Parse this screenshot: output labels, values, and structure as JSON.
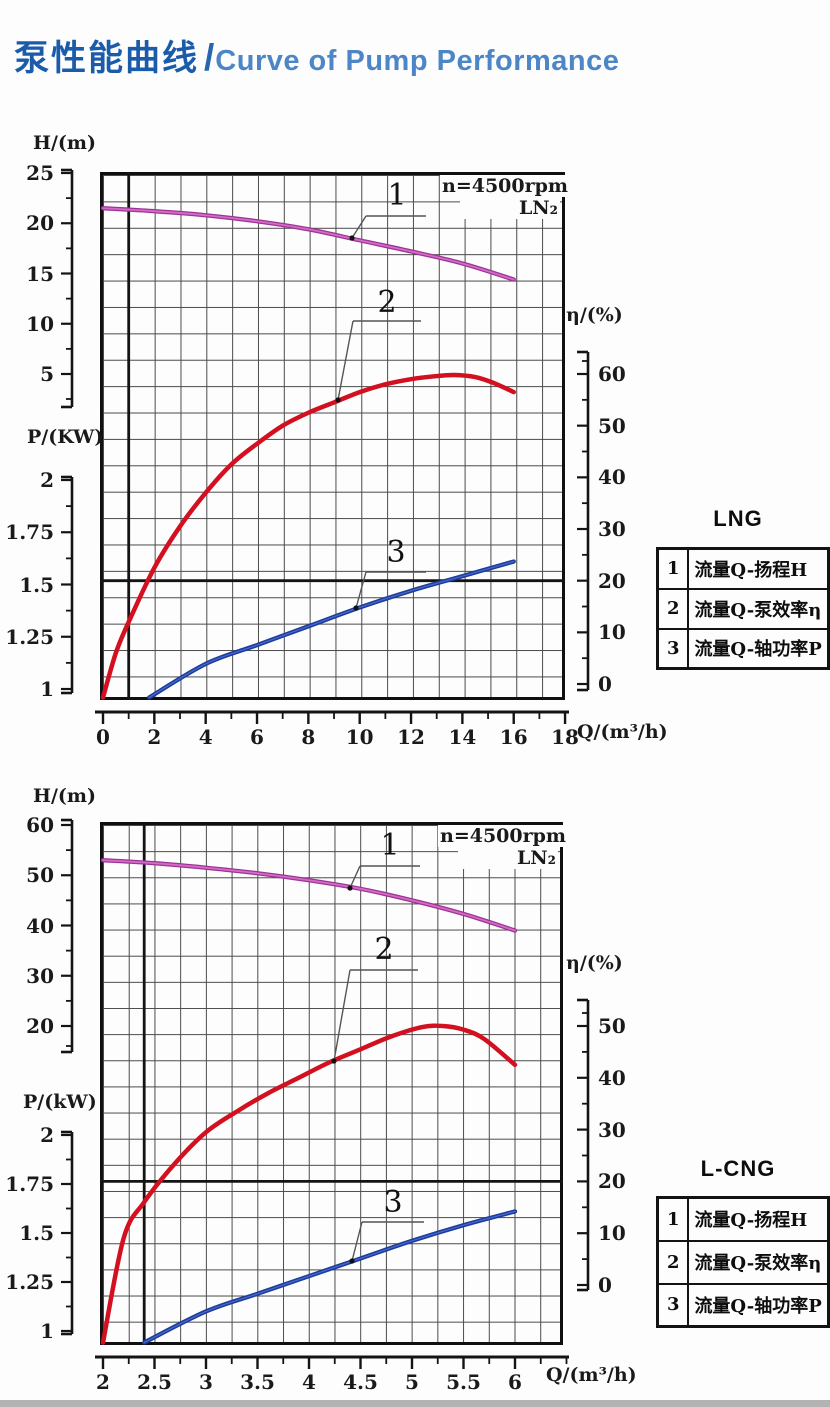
{
  "page": {
    "title_zh": "泵性能曲线",
    "title_sep": "/",
    "title_en": "Curve of Pump Performance"
  },
  "colors": {
    "title_zh": "#1a5caa",
    "title_en": "#4d86c6",
    "head_curve": "#9d3397",
    "head_highlight": "#d46cc6",
    "efficiency_curve": "#d31020",
    "power_curve": "#1c3c9e",
    "linework": "#141414"
  },
  "chart_data": [
    {
      "type": "line",
      "name": "LNG pump performance",
      "annotation": {
        "line1": "n=4500rpm",
        "line2": "LN₂"
      },
      "axes": {
        "x": {
          "label": "Q/(m³/h)",
          "range": [
            0,
            18
          ],
          "major_ticks": [
            0,
            2,
            4,
            6,
            8,
            10,
            12,
            14,
            16,
            18
          ],
          "minor_step": 1
        },
        "head": {
          "label": "H/(m)",
          "ticks": [
            25,
            20,
            15,
            10,
            5
          ]
        },
        "power": {
          "label": "P/(KW)",
          "ticks": [
            2,
            1.75,
            1.5,
            1.25,
            1
          ]
        },
        "efficiency": {
          "label": "η/(%)",
          "ticks": [
            60,
            50,
            40,
            30,
            20,
            10,
            0
          ]
        }
      },
      "series": [
        {
          "marker": "1",
          "name": "流量Q-扬程H",
          "axis": "head",
          "points": [
            [
              0,
              21.5
            ],
            [
              2,
              21.2
            ],
            [
              4,
              20.8
            ],
            [
              6,
              20.2
            ],
            [
              8,
              19.4
            ],
            [
              10,
              18.3
            ],
            [
              12,
              17.2
            ],
            [
              14,
              16.0
            ],
            [
              16,
              14.4
            ]
          ]
        },
        {
          "marker": "2",
          "name": "流量Q-泵效率η",
          "axis": "efficiency",
          "points": [
            [
              0,
              0
            ],
            [
              0.5,
              6
            ],
            [
              1,
              12
            ],
            [
              2,
              22.5
            ],
            [
              3,
              30.5
            ],
            [
              4,
              37
            ],
            [
              5,
              42.5
            ],
            [
              6,
              46.5
            ],
            [
              7,
              50
            ],
            [
              8,
              52.5
            ],
            [
              9,
              54.5
            ],
            [
              10,
              56.5
            ],
            [
              11,
              58
            ],
            [
              12,
              59
            ],
            [
              13,
              59.6
            ],
            [
              13.7,
              59.8
            ],
            [
              14.5,
              59.4
            ],
            [
              15.2,
              58.3
            ],
            [
              16,
              56.5
            ]
          ]
        },
        {
          "marker": "3",
          "name": "流量Q-轴功率P",
          "axis": "power",
          "points": [
            [
              1.8,
              1.0
            ],
            [
              4,
              1.12
            ],
            [
              6,
              1.21
            ],
            [
              8,
              1.3
            ],
            [
              10,
              1.39
            ],
            [
              12,
              1.47
            ],
            [
              14,
              1.54
            ],
            [
              16,
              1.61
            ]
          ]
        }
      ],
      "legend": {
        "title": "LNG",
        "rows": [
          [
            "1",
            "流量Q-扬程H"
          ],
          [
            "2",
            "流量Q-泵效率η"
          ],
          [
            "3",
            "流量Q-轴功率P"
          ]
        ]
      }
    },
    {
      "type": "line",
      "name": "L-CNG pump performance",
      "annotation": {
        "line1": "n=4500rpm",
        "line2": "LN₂"
      },
      "axes": {
        "x": {
          "label": "Q/(m³/h)",
          "range": [
            2,
            6
          ],
          "major_ticks": [
            2,
            2.5,
            3,
            3.5,
            4,
            4.5,
            5,
            5.5,
            6
          ],
          "minor_step": 0.25
        },
        "head": {
          "label": "H/(m)",
          "ticks": [
            60,
            50,
            40,
            30,
            20
          ]
        },
        "power": {
          "label": "P/(kW)",
          "ticks": [
            2,
            1.75,
            1.5,
            1.25,
            1
          ]
        },
        "efficiency": {
          "label": "η/(%)",
          "ticks": [
            50,
            40,
            30,
            20,
            10,
            0
          ]
        }
      },
      "series": [
        {
          "marker": "1",
          "name": "流量Q-扬程H",
          "axis": "head",
          "points": [
            [
              2,
              53
            ],
            [
              2.5,
              52.4
            ],
            [
              3,
              51.5
            ],
            [
              3.5,
              50.4
            ],
            [
              4,
              49
            ],
            [
              4.5,
              47.3
            ],
            [
              5,
              45
            ],
            [
              5.5,
              42.3
            ],
            [
              6,
              39
            ]
          ]
        },
        {
          "marker": "2",
          "name": "流量Q-泵效率η",
          "axis": "efficiency",
          "points": [
            [
              2,
              0
            ],
            [
              2.2,
              9
            ],
            [
              2.4,
              16
            ],
            [
              2.7,
              23.5
            ],
            [
              3,
              29.5
            ],
            [
              3.3,
              33.5
            ],
            [
              3.6,
              37
            ],
            [
              3.9,
              40
            ],
            [
              4.2,
              43
            ],
            [
              4.5,
              45.5
            ],
            [
              4.8,
              48
            ],
            [
              5.1,
              49.8
            ],
            [
              5.3,
              50
            ],
            [
              5.5,
              49.3
            ],
            [
              5.7,
              47.5
            ],
            [
              6,
              42.5
            ]
          ]
        },
        {
          "marker": "3",
          "name": "流量Q-轴功率P",
          "axis": "power",
          "points": [
            [
              2.4,
              1.0
            ],
            [
              3,
              1.1
            ],
            [
              3.5,
              1.19
            ],
            [
              4,
              1.28
            ],
            [
              4.5,
              1.37
            ],
            [
              5,
              1.46
            ],
            [
              5.5,
              1.54
            ],
            [
              6,
              1.61
            ]
          ]
        }
      ],
      "legend": {
        "title": "L-CNG",
        "rows": [
          [
            "1",
            "流量Q-扬程H"
          ],
          [
            "2",
            "流量Q-泵效率η"
          ],
          [
            "3",
            "流量Q-轴功率P"
          ]
        ]
      }
    }
  ]
}
